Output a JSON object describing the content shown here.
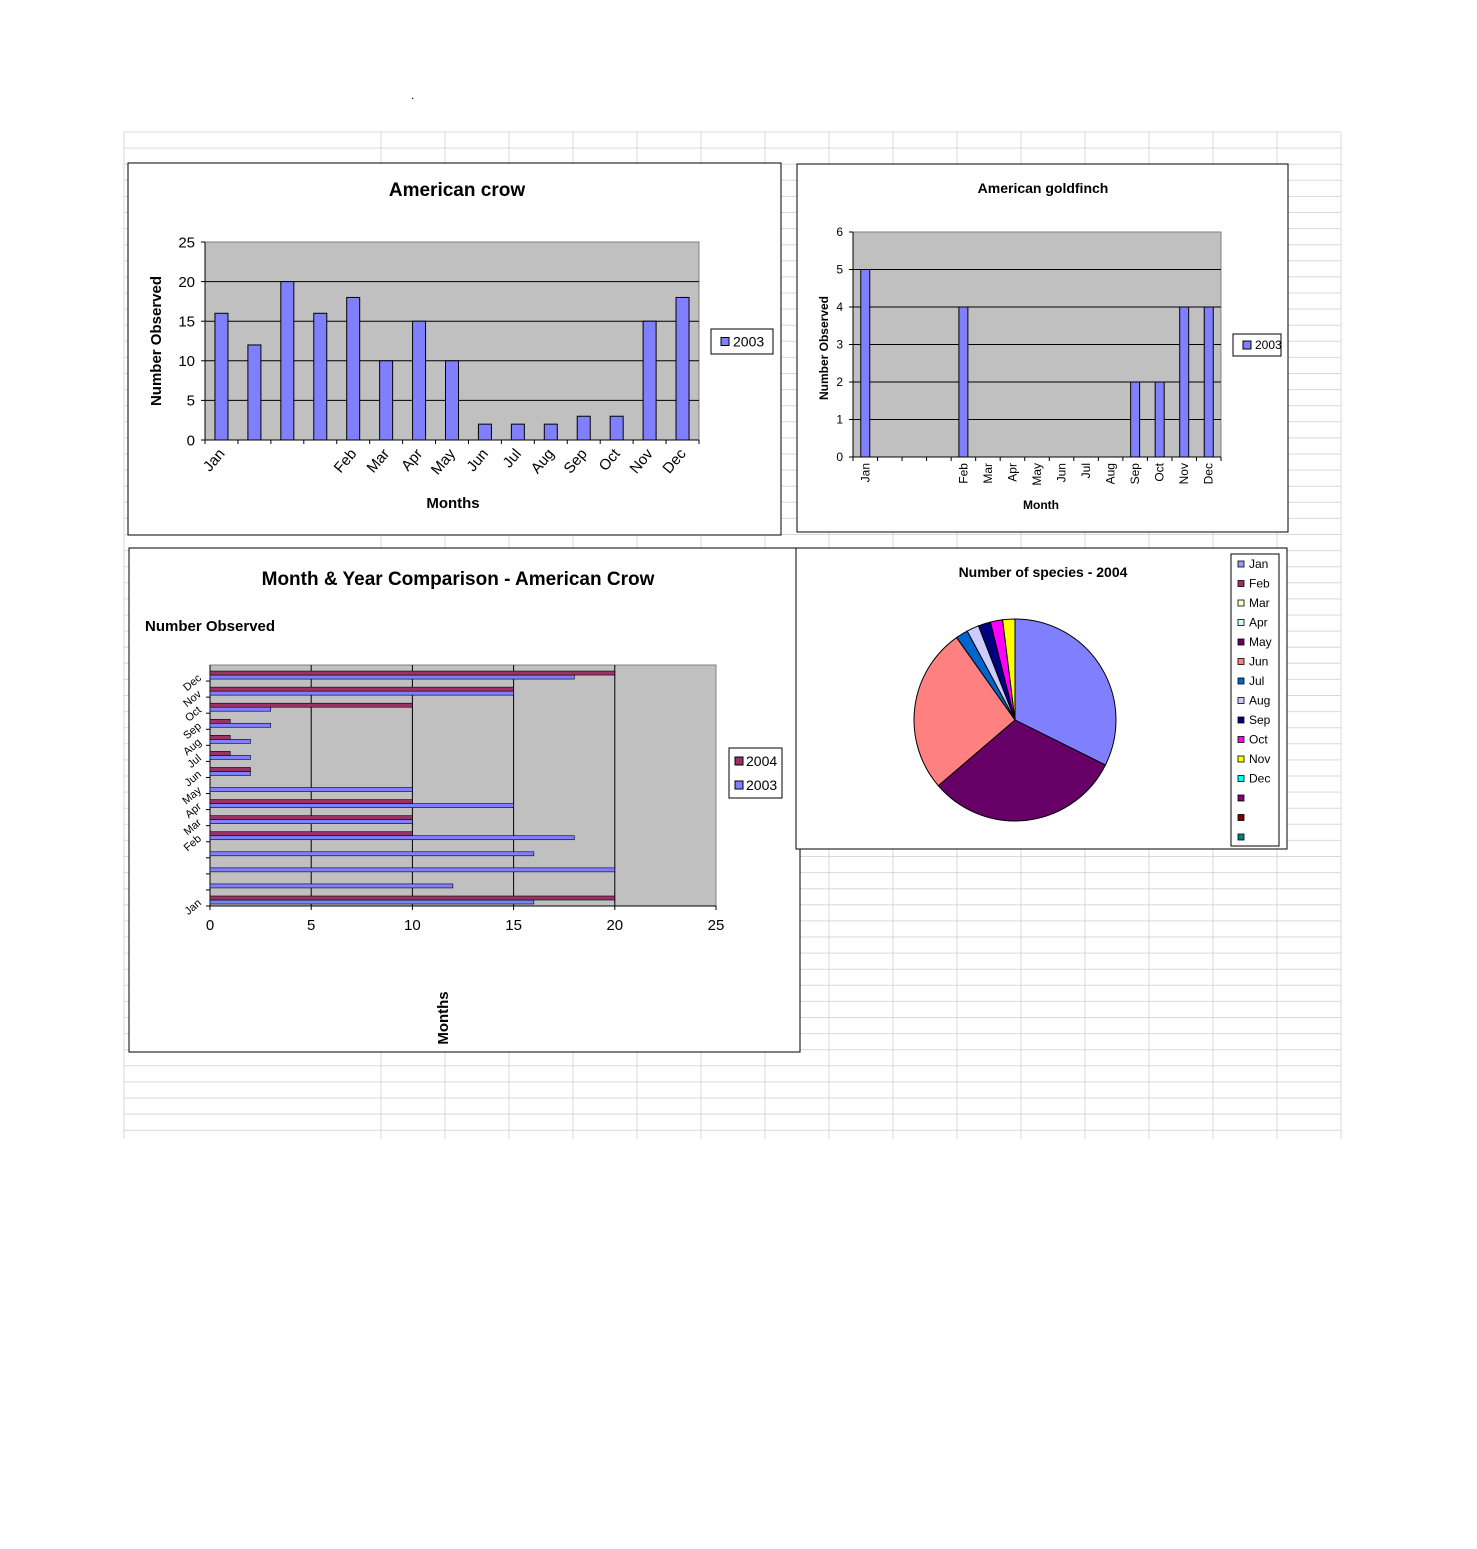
{
  "page": {
    "stray_mark": "."
  },
  "colors": {
    "plot_bg": "#c0c0c0",
    "series_2003": "#8080ff",
    "series_2004": "#993366",
    "grid_line": "#d9d9d9",
    "chart_border": "#000000"
  },
  "chart_data": [
    {
      "id": "american-crow",
      "type": "bar",
      "title": "American crow",
      "xlabel": "Months",
      "ylabel": "Number Observed",
      "ylim": [
        0,
        25
      ],
      "yticks": [
        0,
        5,
        10,
        15,
        20,
        25
      ],
      "categories": [
        "Jan",
        "",
        "",
        "",
        "Feb",
        "Mar",
        "Apr",
        "May",
        "Jun",
        "Jul",
        "Aug",
        "Sep",
        "Oct",
        "Nov",
        "Dec"
      ],
      "series": [
        {
          "name": "2003",
          "color": "#8080ff",
          "values": [
            16,
            12,
            20,
            16,
            18,
            10,
            15,
            10,
            2,
            2,
            2,
            3,
            3,
            15,
            18
          ]
        }
      ],
      "grid": true,
      "legend": "right"
    },
    {
      "id": "american-goldfinch",
      "type": "bar",
      "title": "American goldfinch",
      "xlabel": "Month",
      "ylabel": "Number Observed",
      "ylim": [
        0,
        6
      ],
      "yticks": [
        0,
        1,
        2,
        3,
        4,
        5,
        6
      ],
      "categories": [
        "Jan",
        "",
        "",
        "",
        "Feb",
        "Mar",
        "Apr",
        "May",
        "Jun",
        "Jul",
        "Aug",
        "Sep",
        "Oct",
        "Nov",
        "Dec"
      ],
      "series": [
        {
          "name": "2003",
          "color": "#8080ff",
          "values": [
            5,
            0,
            0,
            0,
            4,
            0,
            0,
            0,
            0,
            0,
            0,
            2,
            2,
            4,
            4
          ]
        }
      ],
      "grid": true,
      "legend": "right"
    },
    {
      "id": "month-year-comparison",
      "type": "bar",
      "orientation": "horizontal",
      "title": "Month & Year Comparison - American Crow",
      "xlabel": "Number Observed",
      "ylabel": "Months",
      "xlim": [
        0,
        25
      ],
      "xticks": [
        0,
        5,
        10,
        15,
        20,
        25
      ],
      "categories": [
        "Jan",
        "",
        "",
        "",
        "Feb",
        "Mar",
        "Apr",
        "May",
        "Jun",
        "Jul",
        "Aug",
        "Sep",
        "Oct",
        "Nov",
        "Dec"
      ],
      "series": [
        {
          "name": "2003",
          "color": "#8080ff",
          "values": [
            16,
            12,
            20,
            16,
            18,
            10,
            15,
            10,
            2,
            2,
            2,
            3,
            3,
            15,
            18
          ]
        },
        {
          "name": "2004",
          "color": "#993366",
          "values": [
            20,
            0,
            0,
            0,
            10,
            10,
            10,
            0,
            2,
            1,
            1,
            1,
            10,
            15,
            20
          ]
        }
      ],
      "grid": true,
      "legend": "right"
    },
    {
      "id": "number-of-species-2004",
      "type": "pie",
      "title": "Number of species - 2004",
      "legend": "right",
      "legend_entries": [
        "Jan",
        "Feb",
        "Mar",
        "Apr",
        "May",
        "Jun",
        "Jul",
        "Aug",
        "Sep",
        "Oct",
        "Nov",
        "Dec",
        "",
        "",
        ""
      ],
      "legend_colors": [
        "#9999ff",
        "#993366",
        "#ffffcc",
        "#ccffff",
        "#660066",
        "#ff8080",
        "#0066cc",
        "#ccccff",
        "#000080",
        "#ff00ff",
        "#ffff00",
        "#00ffff",
        "#800080",
        "#800000",
        "#008080"
      ],
      "slices": [
        {
          "label": "Jan",
          "value": 33,
          "color": "#8080ff"
        },
        {
          "label": "May",
          "value": 32,
          "color": "#660066"
        },
        {
          "label": "Jun",
          "value": 27,
          "color": "#ff8080"
        },
        {
          "label": "Jul",
          "value": 2,
          "color": "#0066cc"
        },
        {
          "label": "Aug",
          "value": 2,
          "color": "#ccccff"
        },
        {
          "label": "Sep",
          "value": 2,
          "color": "#000080"
        },
        {
          "label": "Oct",
          "value": 2,
          "color": "#ff00ff"
        },
        {
          "label": "Nov",
          "value": 2,
          "color": "#ffff00"
        }
      ]
    }
  ]
}
